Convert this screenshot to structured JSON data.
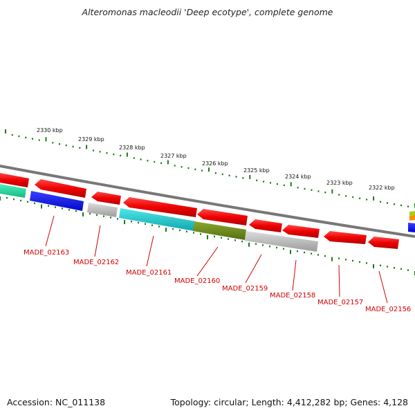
{
  "title": "Alteromonas macleodii 'Deep ecotype', complete genome",
  "footer": {
    "accession": "Accession: NC_011138",
    "topology": "Topology: circular; Length: 4,412,282 bp; Genes: 4,128"
  },
  "scale_labels": [
    "2330 kbp",
    "2329 kbp",
    "2328 kbp",
    "2327 kbp",
    "2326 kbp",
    "2325 kbp",
    "2324 kbp",
    "2323 kbp",
    "2322 kbp"
  ],
  "gene_labels": [
    "MADE_02163",
    "MADE_02162",
    "MADE_02161",
    "MADE_02160",
    "MADE_02159",
    "MADE_02158",
    "MADE_02157",
    "MADE_02156"
  ],
  "colors": {
    "red": "#ee0000",
    "blue": "#0a10e8",
    "gray": "#b8b8b8",
    "cyan": "#20c8c8",
    "olive": "#6b8a1a",
    "teal": "#1ad9a0",
    "backbone": "#888888",
    "tick": "#1a7a1a",
    "label": "#d40000"
  }
}
